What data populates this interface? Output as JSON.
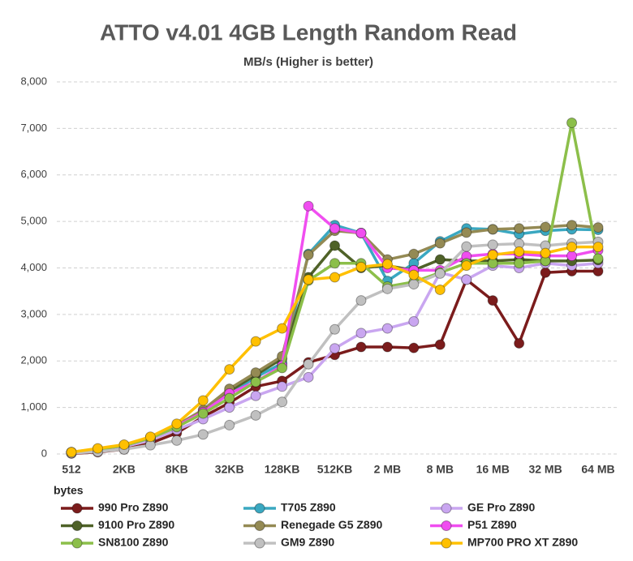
{
  "chart_data": {
    "type": "line",
    "title": "ATTO v4.01 4GB Length Random Read",
    "subtitle": "MB/s (Higher is better)",
    "x_label": "bytes",
    "categories": [
      "512",
      null,
      "2KB",
      null,
      "8KB",
      null,
      "32KB",
      null,
      "128KB",
      null,
      "512KB",
      null,
      "2 MB",
      null,
      "8 MB",
      null,
      "16 MB",
      null,
      "32 MB",
      null,
      "64 MB"
    ],
    "ylim": [
      0,
      8000
    ],
    "yticks": [
      0,
      {
        "value": 1000,
        "label": "1,000"
      },
      {
        "value": 2000,
        "label": "2,000"
      },
      {
        "value": 3000,
        "label": "3,000"
      },
      {
        "value": 4000,
        "label": "4,000"
      },
      {
        "value": 5000,
        "label": "5,000"
      },
      {
        "value": 6000,
        "label": "6,000"
      },
      {
        "value": 7000,
        "label": "7,000"
      },
      {
        "value": 8000,
        "label": "8,000"
      }
    ],
    "grid": true,
    "series": [
      {
        "name": "990 Pro Z890",
        "color": "#7b1c1c",
        "values": [
          10,
          40,
          100,
          230,
          450,
          800,
          1100,
          1450,
          1570,
          1970,
          2130,
          2300,
          2300,
          2280,
          2350,
          3750,
          3300,
          2380,
          3900,
          3930,
          3930
        ]
      },
      {
        "name": "T705 Z890",
        "color": "#3aa8c1",
        "values": [
          30,
          90,
          170,
          330,
          600,
          900,
          1300,
          1650,
          1950,
          4300,
          4920,
          4750,
          3720,
          4100,
          4570,
          4850,
          4830,
          4730,
          4800,
          4830,
          4820
        ]
      },
      {
        "name": "GE Pro Z890",
        "color": "#c9a6f0",
        "values": [
          30,
          80,
          160,
          300,
          520,
          750,
          1000,
          1250,
          1450,
          1650,
          2270,
          2600,
          2700,
          2850,
          3900,
          3750,
          4050,
          4000,
          4100,
          4050,
          4100
        ]
      },
      {
        "name": "9100 Pro Z890",
        "color": "#4f6228",
        "values": [
          30,
          100,
          180,
          350,
          600,
          900,
          1350,
          1700,
          2050,
          3800,
          4480,
          4000,
          4050,
          3950,
          4180,
          4150,
          4150,
          4180,
          4150,
          4150,
          4170
        ]
      },
      {
        "name": "Renegade G5 Z890",
        "color": "#948a54",
        "values": [
          40,
          110,
          190,
          360,
          620,
          950,
          1400,
          1750,
          2100,
          4280,
          4800,
          4750,
          4180,
          4300,
          4530,
          4760,
          4830,
          4850,
          4880,
          4920,
          4870
        ]
      },
      {
        "name": "P51 Z890",
        "color": "#f04ef0",
        "values": [
          30,
          100,
          180,
          350,
          600,
          900,
          1300,
          1550,
          1900,
          5330,
          4850,
          4750,
          4000,
          3950,
          3950,
          4250,
          4300,
          4300,
          4260,
          4260,
          4380
        ]
      },
      {
        "name": "SN8100 Z890",
        "color": "#8cbf4a",
        "values": [
          30,
          100,
          180,
          340,
          580,
          870,
          1200,
          1550,
          1850,
          3730,
          4100,
          4100,
          3600,
          3700,
          3900,
          4100,
          4100,
          4100,
          4150,
          7120,
          4200
        ]
      },
      {
        "name": "GM9 Z890",
        "color": "#c0c0c0",
        "values": [
          20,
          50,
          100,
          190,
          290,
          420,
          620,
          830,
          1120,
          1930,
          2680,
          3300,
          3550,
          3650,
          3880,
          4460,
          4500,
          4520,
          4480,
          4530,
          4560
        ]
      },
      {
        "name": "MP700 PRO XT Z890",
        "color": "#ffc000",
        "values": [
          40,
          120,
          200,
          370,
          650,
          1150,
          1820,
          2420,
          2700,
          3750,
          3800,
          4020,
          4080,
          3850,
          3530,
          4050,
          4280,
          4350,
          4320,
          4450,
          4450
        ]
      }
    ]
  }
}
